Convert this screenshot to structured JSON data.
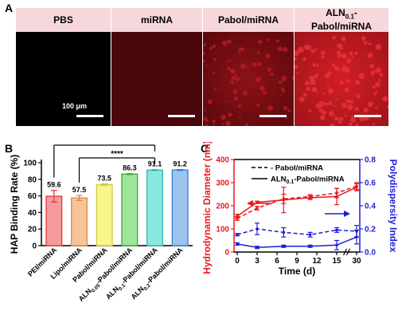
{
  "panels": {
    "a": "A",
    "b": "B",
    "c": "C"
  },
  "micrographs": {
    "headers": [
      "PBS",
      "miRNA",
      "Pabol/miRNA",
      "ALN0.1-Pabol/miRNA"
    ],
    "header_lines": [
      [
        "PBS"
      ],
      [
        "miRNA"
      ],
      [
        "Pabol/miRNA"
      ],
      [
        "ALN",
        "0.1",
        "-",
        "Pabol/miRNA"
      ]
    ],
    "scale_label": "100 μm",
    "colors": {
      "header_bg": "#f6d8dc",
      "fluorescence": "#c0121b",
      "background": "#000000"
    }
  },
  "chart_data": [
    {
      "type": "bar",
      "panel": "B",
      "ylabel": "HAP Binding Rate (%)",
      "ylim": [
        0,
        100
      ],
      "yticks": [
        0,
        20,
        40,
        60,
        80,
        100
      ],
      "categories": [
        "PEI/miRNA",
        "Lipo/miRNA",
        "Pabol/miRNA",
        "ALN0.05-Pabol/miRNA",
        "ALN0.1-Pabol/miRNA",
        "ALN0.2-Pabol/miRNA"
      ],
      "category_parts": [
        [
          "PEI/miRNA"
        ],
        [
          "Lipo/miRNA"
        ],
        [
          "Pabol/miRNA"
        ],
        [
          "ALN",
          "0.05",
          "-Pabol/miRNA"
        ],
        [
          "ALN",
          "0.1",
          "-Pabol/miRNA"
        ],
        [
          "ALN",
          "0.2",
          "-Pabol/miRNA"
        ]
      ],
      "values": [
        59.6,
        57.5,
        73.5,
        86.3,
        91.1,
        91.2
      ],
      "value_labels": [
        "59.6",
        "57.5",
        "73.5",
        "86.3",
        "91.1",
        "91.2"
      ],
      "errors": [
        7,
        3,
        1,
        0.5,
        0.5,
        0.5
      ],
      "fill_colors": [
        "#f59a9a",
        "#f7c49a",
        "#f7f58c",
        "#9ee69a",
        "#8ae8e0",
        "#9cc4ee"
      ],
      "edge_colors": [
        "#e03a3a",
        "#e08a3a",
        "#d4c83a",
        "#3aa83a",
        "#2ab8b0",
        "#3a7ad4"
      ],
      "significance": [
        {
          "from": 0,
          "to": 4,
          "label": "**"
        },
        {
          "from": 1,
          "to": 4,
          "label": "****"
        }
      ]
    },
    {
      "type": "line",
      "panel": "C",
      "xlabel": "Time (d)",
      "x_ticks": [
        "0",
        "3",
        "6",
        "9",
        "12",
        "15",
        "30"
      ],
      "x_axis_break": [
        15,
        30
      ],
      "y_left": {
        "label": "Hydrodynamic Diameter (nm)",
        "lim": [
          0,
          400
        ],
        "ticks": [
          0,
          100,
          200,
          300,
          400
        ],
        "color": "#e8191c"
      },
      "y_right": {
        "label": "Polydispersity Index",
        "lim": [
          0,
          0.8
        ],
        "ticks": [
          "0.0",
          "0.2",
          "0.4",
          "0.6",
          "0.8"
        ],
        "color": "#1d1dd6"
      },
      "legend": [
        {
          "label": "Pabol/miRNA",
          "style": "dashed"
        },
        {
          "label": "ALN0.1-Pabol/miRNA",
          "label_parts": [
            "ALN",
            "0.1",
            "-Pabol/miRNA"
          ],
          "style": "solid"
        }
      ],
      "series": [
        {
          "name": "Pabol/miRNA",
          "axis": "left",
          "style": "dashed",
          "color": "#e8191c",
          "x": [
            0,
            3,
            7,
            11,
            15,
            30
          ],
          "y": [
            145,
            190,
            230,
            240,
            255,
            285
          ],
          "err": [
            8,
            8,
            20,
            8,
            20,
            15
          ]
        },
        {
          "name": "ALN0.1-Pabol/miRNA",
          "axis": "left",
          "style": "solid",
          "color": "#e8191c",
          "x": [
            0,
            3,
            7,
            11,
            15,
            30
          ],
          "y": [
            155,
            215,
            225,
            235,
            240,
            280
          ],
          "err": [
            8,
            5,
            55,
            8,
            35,
            15
          ]
        },
        {
          "name": "Pabol/miRNA",
          "axis": "right",
          "style": "dashed",
          "color": "#1d1dd6",
          "x": [
            0,
            3,
            7,
            11,
            15,
            30
          ],
          "y": [
            0.15,
            0.2,
            0.17,
            0.15,
            0.19,
            0.18
          ],
          "err": [
            0.01,
            0.05,
            0.04,
            0.02,
            0.02,
            0.05
          ]
        },
        {
          "name": "ALN0.1-Pabol/miRNA",
          "axis": "right",
          "style": "solid",
          "color": "#1d1dd6",
          "x": [
            0,
            3,
            7,
            11,
            15,
            30
          ],
          "y": [
            0.07,
            0.04,
            0.05,
            0.05,
            0.06,
            0.13
          ],
          "err": [
            0.01,
            0.01,
            0.01,
            0.01,
            0.04,
            0.06
          ]
        }
      ]
    }
  ]
}
